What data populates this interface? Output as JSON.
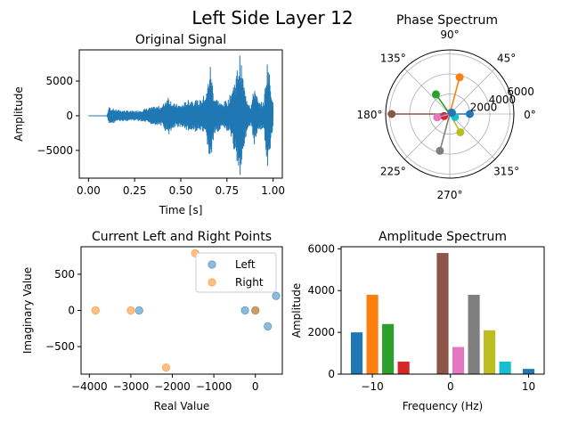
{
  "figure": {
    "suptitle": "Left Side Layer 12"
  },
  "chart_data": [
    {
      "type": "line",
      "title": "Original Signal",
      "xlabel": "Time [s]",
      "ylabel": "Amplitude",
      "xlim": [
        -0.05,
        1.05
      ],
      "ylim": [
        -9000,
        9500
      ],
      "xticks": [
        0.0,
        0.25,
        0.5,
        0.75,
        1.0
      ],
      "xtick_labels": [
        "0.00",
        "0.25",
        "0.50",
        "0.75",
        "1.00"
      ],
      "yticks": [
        -5000,
        0,
        5000
      ],
      "ytick_labels": [
        "−5000",
        "0",
        "5000"
      ],
      "color": "#1f77b4",
      "envelope": [
        [
          0.0,
          0
        ],
        [
          0.1,
          0
        ],
        [
          0.11,
          1300
        ],
        [
          0.15,
          900
        ],
        [
          0.2,
          800
        ],
        [
          0.25,
          700
        ],
        [
          0.3,
          1000
        ],
        [
          0.35,
          1300
        ],
        [
          0.4,
          1500
        ],
        [
          0.43,
          3000
        ],
        [
          0.46,
          1800
        ],
        [
          0.5,
          1600
        ],
        [
          0.55,
          2500
        ],
        [
          0.6,
          2200
        ],
        [
          0.64,
          3500
        ],
        [
          0.66,
          7500
        ],
        [
          0.68,
          3000
        ],
        [
          0.72,
          1800
        ],
        [
          0.76,
          2500
        ],
        [
          0.8,
          6000
        ],
        [
          0.82,
          9000
        ],
        [
          0.85,
          3200
        ],
        [
          0.88,
          1500
        ],
        [
          0.9,
          4500
        ],
        [
          0.92,
          2000
        ],
        [
          0.95,
          2000
        ],
        [
          0.97,
          8500
        ],
        [
          0.99,
          4000
        ],
        [
          1.0,
          2000
        ]
      ]
    },
    {
      "type": "scatter",
      "subtype": "polar",
      "title": "Phase Spectrum",
      "angle_ticks": [
        "0°",
        "45°",
        "90°",
        "135°",
        "180°",
        "225°",
        "270°",
        "315°"
      ],
      "radial_ticks": [
        2000,
        4000,
        6000
      ],
      "radial_tick_labels": [
        "2000",
        "4000",
        "6000"
      ],
      "rmax": 6400,
      "points": [
        {
          "angle_deg": 0,
          "r": 2000,
          "color": "#1f77b4"
        },
        {
          "angle_deg": 75,
          "r": 3800,
          "color": "#ff7f0e"
        },
        {
          "angle_deg": 125,
          "r": 2400,
          "color": "#2ca02c"
        },
        {
          "angle_deg": 200,
          "r": 600,
          "color": "#d62728"
        },
        {
          "angle_deg": 45,
          "r": 200,
          "color": "#9467bd"
        },
        {
          "angle_deg": 180,
          "r": 5800,
          "color": "#8c564b"
        },
        {
          "angle_deg": 195,
          "r": 1300,
          "color": "#e377c2"
        },
        {
          "angle_deg": 255,
          "r": 3800,
          "color": "#7f7f7f"
        },
        {
          "angle_deg": 300,
          "r": 2100,
          "color": "#bcbd22"
        },
        {
          "angle_deg": 330,
          "r": 600,
          "color": "#17becf"
        },
        {
          "angle_deg": 30,
          "r": 250,
          "color": "#1f77b4"
        }
      ]
    },
    {
      "type": "scatter",
      "title": "Current Left and Right Points",
      "xlabel": "Real Value",
      "ylabel": "Imaginary Value",
      "xlim": [
        -4200,
        650
      ],
      "ylim": [
        -880,
        880
      ],
      "xticks": [
        -4000,
        -3000,
        -2000,
        -1000,
        0
      ],
      "xtick_labels": [
        "−4000",
        "−3000",
        "−2000",
        "−1000",
        "0"
      ],
      "yticks": [
        -500,
        0,
        500
      ],
      "ytick_labels": [
        "−500",
        "0",
        "500"
      ],
      "legend_position": "top-right",
      "series": [
        {
          "name": "Left",
          "color": "#1f77b4",
          "points": [
            [
              -2800,
              0
            ],
            [
              -250,
              0
            ],
            [
              0,
              0
            ],
            [
              500,
              200
            ],
            [
              300,
              -220
            ]
          ]
        },
        {
          "name": "Right",
          "color": "#ff7f0e",
          "points": [
            [
              -3850,
              0
            ],
            [
              -3000,
              0
            ],
            [
              -1450,
              790
            ],
            [
              -2150,
              -790
            ],
            [
              0,
              0
            ]
          ]
        }
      ]
    },
    {
      "type": "bar",
      "title": "Amplitude Spectrum",
      "xlabel": "Frequency (Hz)",
      "ylabel": "Amplitude",
      "xlim": [
        -14,
        12
      ],
      "ylim": [
        0,
        6100
      ],
      "xticks": [
        -10,
        0,
        10
      ],
      "xtick_labels": [
        "−10",
        "0",
        "10"
      ],
      "yticks": [
        0,
        2000,
        4000,
        6000
      ],
      "ytick_labels": [
        "0",
        "2000",
        "4000",
        "6000"
      ],
      "bars": [
        {
          "x": -12,
          "value": 2000,
          "color": "#1f77b4"
        },
        {
          "x": -10,
          "value": 3800,
          "color": "#ff7f0e"
        },
        {
          "x": -8,
          "value": 2400,
          "color": "#2ca02c"
        },
        {
          "x": -6,
          "value": 600,
          "color": "#d62728"
        },
        {
          "x": -4,
          "value": 0,
          "color": "#9467bd"
        },
        {
          "x": -1,
          "value": 5800,
          "color": "#8c564b"
        },
        {
          "x": 1,
          "value": 1300,
          "color": "#e377c2"
        },
        {
          "x": 3,
          "value": 3800,
          "color": "#7f7f7f"
        },
        {
          "x": 5,
          "value": 2100,
          "color": "#bcbd22"
        },
        {
          "x": 7,
          "value": 600,
          "color": "#17becf"
        },
        {
          "x": 10,
          "value": 250,
          "color": "#1f77b4"
        }
      ]
    }
  ]
}
